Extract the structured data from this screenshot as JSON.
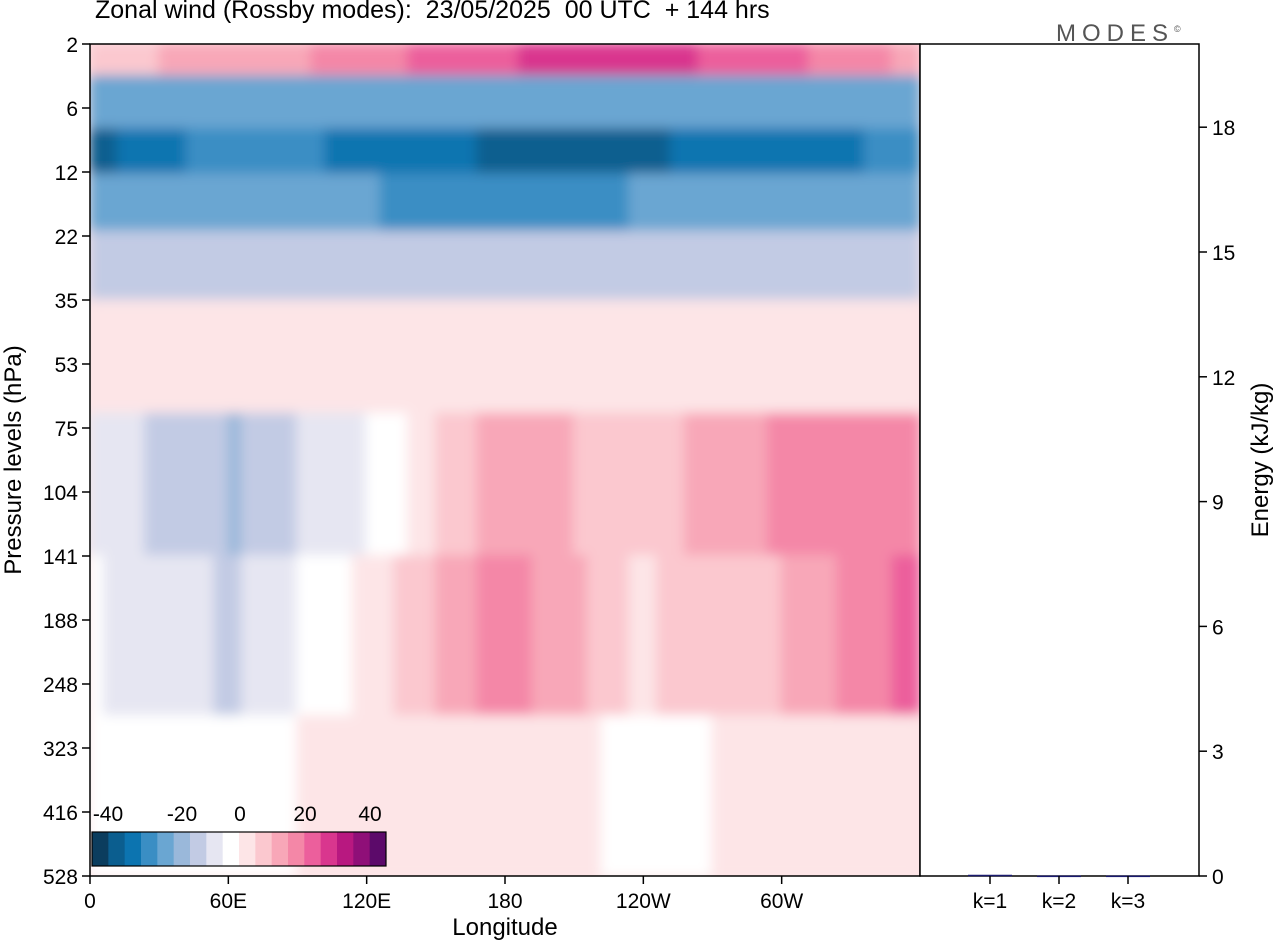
{
  "title": "Zonal wind (Rossby modes):  23/05/2025  00 UTC  + 144 hrs",
  "logo": "MODES",
  "logo_mark": "©",
  "chart_data": [
    {
      "type": "heatmap",
      "title": "Zonal wind (Rossby modes):  23/05/2025  00 UTC  + 144 hrs",
      "xlabel": "Longitude",
      "ylabel": "Pressure levels (hPa)",
      "x_ticks": [
        "0",
        "60E",
        "120E",
        "180",
        "120W",
        "60W"
      ],
      "x_tick_values": [
        0,
        60,
        120,
        180,
        240,
        300
      ],
      "xlim": [
        0,
        360
      ],
      "y_ticks": [
        "2",
        "6",
        "12",
        "22",
        "35",
        "53",
        "75",
        "104",
        "141",
        "188",
        "248",
        "323",
        "416",
        "528"
      ],
      "y_scale": "pressure levels, top 2 hPa to bottom 528 hPa",
      "colorbar": {
        "labels": [
          "-40",
          "-20",
          "0",
          "20",
          "40"
        ],
        "values": [
          -40,
          -20,
          0,
          20,
          40
        ],
        "colors": [
          "#0b3d5e",
          "#0b5e8f",
          "#0c74b0",
          "#3a8ec4",
          "#6aa6d2",
          "#9ab8da",
          "#c2cbe4",
          "#e6e6f2",
          "#ffffff",
          "#fde5e7",
          "#fbc8cf",
          "#f8a7b8",
          "#f487a7",
          "#ec5f9c",
          "#d9368e",
          "#b81880",
          "#8f0f78",
          "#5c0a6a"
        ]
      },
      "layers": [
        {
          "level": "2",
          "u": [
            8,
            10,
            16,
            22,
            24,
            20,
            12
          ]
        },
        {
          "level": "6",
          "u": [
            -18,
            -18,
            -18,
            -18,
            -18,
            -18,
            -18
          ]
        },
        {
          "level": "10",
          "u": [
            -32,
            -24,
            -28,
            -32,
            -32,
            -28,
            -26
          ]
        },
        {
          "level": "16",
          "u": [
            -22,
            -22,
            -22,
            -24,
            -22,
            -22,
            -22
          ]
        },
        {
          "level": "28",
          "u": [
            -12,
            -12,
            -12,
            -12,
            -12,
            -12,
            -12
          ]
        },
        {
          "level": "45",
          "u": [
            2,
            2,
            2,
            2,
            2,
            2,
            2
          ]
        },
        {
          "level": "104",
          "u": [
            -6,
            -14,
            -4,
            12,
            6,
            14,
            16
          ]
        },
        {
          "level": "188",
          "u": [
            -4,
            -10,
            2,
            16,
            4,
            8,
            20
          ]
        },
        {
          "level": "416",
          "u": [
            -2,
            -2,
            2,
            4,
            -2,
            2,
            4
          ]
        }
      ]
    },
    {
      "type": "bar",
      "categories": [
        "k=1",
        "k=2",
        "k=3"
      ],
      "values": [
        0.03,
        0.01,
        0.01
      ],
      "ylabel": "Energy (kJ/kg)",
      "ylim": [
        0,
        20
      ],
      "y_ticks": [
        0,
        3,
        6,
        9,
        12,
        15,
        18
      ],
      "bar_color": "#1a1a6e"
    }
  ]
}
